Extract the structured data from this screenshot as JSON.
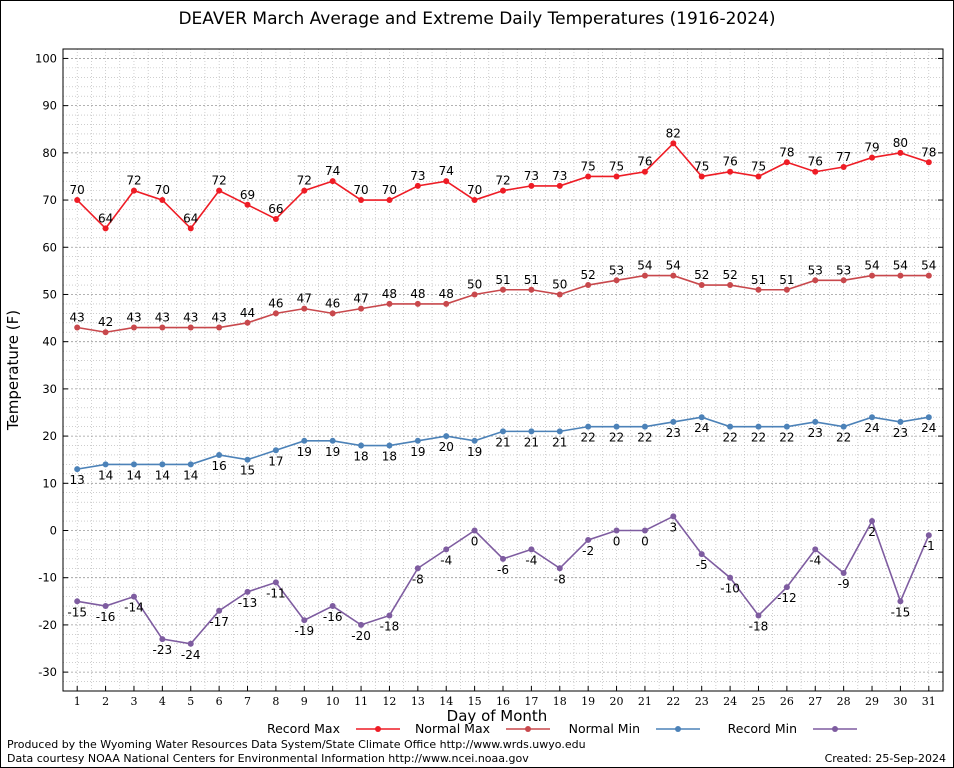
{
  "title": "DEAVER March Average and Extreme Daily Temperatures (1916-2024)",
  "footer": {
    "line1": "Produced by the Wyoming Water Resources Data System/State Climate Office http://www.wrds.uwyo.edu",
    "line2": "Data courtesy NOAA National Centers for Environmental Information http://www.ncei.noaa.gov",
    "created": "Created:  25-Sep-2024"
  },
  "colors": {
    "record_max": "#ee1c25",
    "normal_max": "#c8484c",
    "normal_min": "#4c82b8",
    "record_min": "#7e5ca0",
    "grid": "#b0b0b0"
  },
  "chart_data": {
    "type": "line",
    "title": "DEAVER March Average and Extreme Daily Temperatures (1916-2024)",
    "xlabel": "Day of Month",
    "ylabel": "Temperature (F)",
    "ylim": [
      -34,
      102
    ],
    "yticks": [
      -30,
      -20,
      -10,
      0,
      10,
      20,
      30,
      40,
      50,
      60,
      70,
      80,
      90,
      100
    ],
    "x": [
      1,
      2,
      3,
      4,
      5,
      6,
      7,
      8,
      9,
      10,
      11,
      12,
      13,
      14,
      15,
      16,
      17,
      18,
      19,
      20,
      21,
      22,
      23,
      24,
      25,
      26,
      27,
      28,
      29,
      30,
      31
    ],
    "grid": true,
    "legend_position": "bottom",
    "series": [
      {
        "name": "Record Max",
        "color": "#ee1c25",
        "label_pos": "above",
        "values": [
          70,
          64,
          72,
          70,
          64,
          72,
          69,
          66,
          72,
          74,
          70,
          70,
          73,
          74,
          70,
          72,
          73,
          73,
          75,
          75,
          76,
          82,
          75,
          76,
          75,
          78,
          76,
          77,
          79,
          80,
          78
        ]
      },
      {
        "name": "Normal Max",
        "color": "#c8484c",
        "label_pos": "above",
        "values": [
          43,
          42,
          43,
          43,
          43,
          43,
          44,
          46,
          47,
          46,
          47,
          48,
          48,
          48,
          50,
          51,
          51,
          50,
          52,
          53,
          54,
          54,
          52,
          52,
          51,
          51,
          53,
          53,
          54,
          54,
          54
        ]
      },
      {
        "name": "Normal Min",
        "color": "#4c82b8",
        "label_pos": "below",
        "values": [
          13,
          14,
          14,
          14,
          14,
          16,
          15,
          17,
          19,
          19,
          18,
          18,
          19,
          20,
          19,
          21,
          21,
          21,
          22,
          22,
          22,
          23,
          24,
          22,
          22,
          22,
          23,
          22,
          24,
          23,
          24
        ]
      },
      {
        "name": "Record Min",
        "color": "#7e5ca0",
        "label_pos": "below",
        "values": [
          -15,
          -16,
          -14,
          -23,
          -24,
          -17,
          -13,
          -11,
          -19,
          -16,
          -20,
          -18,
          -8,
          -4,
          0,
          -6,
          -4,
          -8,
          -2,
          0,
          0,
          3,
          -5,
          -10,
          -18,
          -12,
          -4,
          -9,
          2,
          -15,
          -1
        ]
      }
    ]
  }
}
